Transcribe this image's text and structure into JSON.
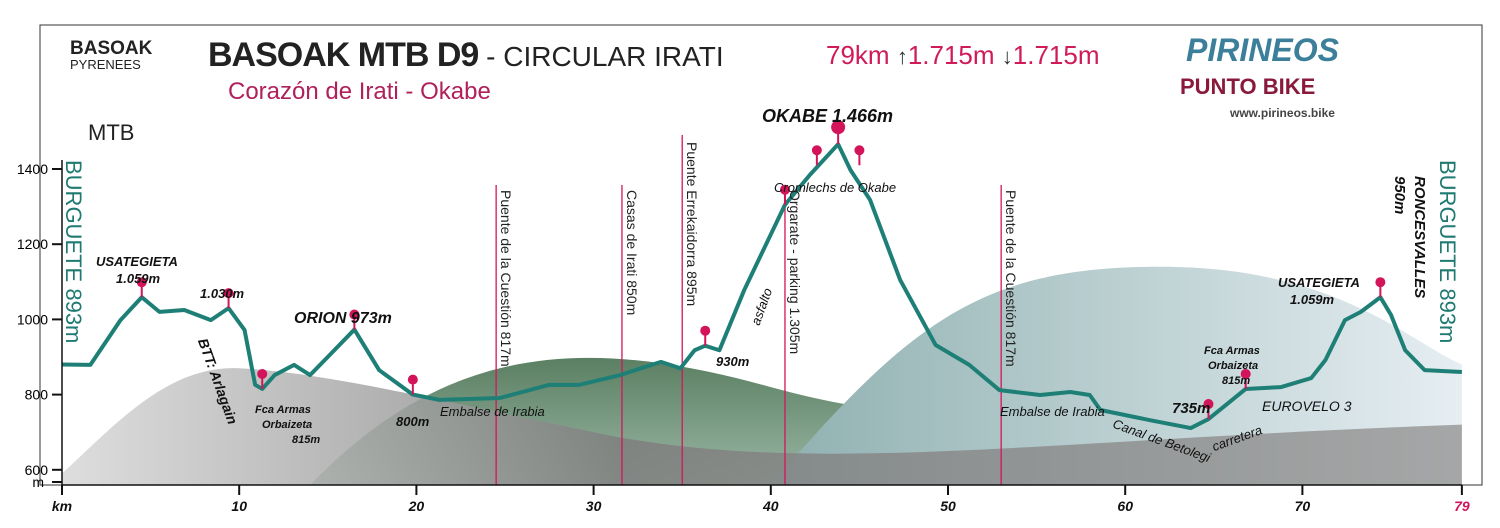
{
  "header": {
    "title": "BASOAK MTB D9",
    "title_sep": " - ",
    "title_rest": "CIRCULAR IRATI",
    "subtitle": "Corazón de Irati - Okabe",
    "distance": "79km",
    "ascent": "1.715m",
    "descent": "1.715m"
  },
  "logo_left": {
    "line1": "BASOAK",
    "line2": "PYRENEES",
    "line3": "MTB"
  },
  "logo_right": {
    "brand": "PIRINEOS",
    "sub": "PUNTO BIKE",
    "url": "www.pirineos.bike"
  },
  "colors": {
    "profile": "#1e7f76",
    "pin": "#d4145a",
    "vline": "#d4145a",
    "hill_green": "#5f8a6e",
    "hill_grey": "#8a8a8a"
  },
  "chart_data": {
    "type": "area",
    "xlabel": "km",
    "ylabel": "m",
    "xlim": [
      0,
      79
    ],
    "ylim": [
      575,
      1500
    ],
    "xticks": [
      0,
      10,
      20,
      30,
      40,
      50,
      60,
      70,
      79
    ],
    "xtick_labels": [
      "km",
      "10",
      "20",
      "30",
      "40",
      "50",
      "60",
      "70",
      "79"
    ],
    "yticks": [
      1400,
      1200,
      1000,
      800,
      600
    ],
    "ytick_labels": [
      "1400",
      "1200",
      "1000",
      "800",
      "600"
    ],
    "grid": false,
    "profile": [
      [
        0,
        880
      ],
      [
        1.6,
        879
      ],
      [
        3.3,
        998
      ],
      [
        4.5,
        1059
      ],
      [
        5.5,
        1020
      ],
      [
        6.9,
        1025
      ],
      [
        8.4,
        998
      ],
      [
        9.4,
        1030
      ],
      [
        10.3,
        972
      ],
      [
        10.9,
        826
      ],
      [
        11.3,
        815
      ],
      [
        12,
        852
      ],
      [
        13.1,
        879
      ],
      [
        14,
        852
      ],
      [
        15.1,
        905
      ],
      [
        16.5,
        973
      ],
      [
        17.9,
        865
      ],
      [
        19.8,
        800
      ],
      [
        21.3,
        786
      ],
      [
        24.7,
        791
      ],
      [
        27.5,
        826
      ],
      [
        29.2,
        826
      ],
      [
        31.5,
        852
      ],
      [
        33.8,
        887
      ],
      [
        34.9,
        870
      ],
      [
        35.7,
        918
      ],
      [
        36.3,
        930
      ],
      [
        37.1,
        918
      ],
      [
        38.5,
        1078
      ],
      [
        40.8,
        1305
      ],
      [
        42.2,
        1384
      ],
      [
        43.8,
        1466
      ],
      [
        44.5,
        1397
      ],
      [
        45.6,
        1318
      ],
      [
        47.3,
        1105
      ],
      [
        49.3,
        932
      ],
      [
        51.2,
        879
      ],
      [
        52.9,
        812
      ],
      [
        55.2,
        799
      ],
      [
        56.9,
        807
      ],
      [
        58,
        799
      ],
      [
        58.6,
        759
      ],
      [
        61.4,
        732
      ],
      [
        63.7,
        711
      ],
      [
        64.7,
        735
      ],
      [
        66.8,
        815
      ],
      [
        68.8,
        820
      ],
      [
        70.5,
        844
      ],
      [
        71.3,
        892
      ],
      [
        72.4,
        998
      ],
      [
        73.3,
        1020
      ],
      [
        74.4,
        1059
      ],
      [
        75,
        1012
      ],
      [
        75.8,
        918
      ],
      [
        76.9,
        865
      ],
      [
        79,
        860
      ]
    ],
    "waypoints": [
      {
        "km": 4.5,
        "m": 1059,
        "label": "USATEGIETA",
        "sub": "1.059m"
      },
      {
        "km": 9.4,
        "m": 1030,
        "label": "1.030m"
      },
      {
        "km": 11.3,
        "m": 815,
        "label": "Fca Armas",
        "sub": "Orbaizeta",
        "sub2": "815m"
      },
      {
        "km": 16.5,
        "m": 973,
        "label": "ORION 973m"
      },
      {
        "km": 19.8,
        "m": 800,
        "label": "800m"
      },
      {
        "km": 36.3,
        "m": 930,
        "label": "930m"
      },
      {
        "km": 40.8,
        "m": 1305,
        "label": ""
      },
      {
        "km": 42.6,
        "m": 1410,
        "label": ""
      },
      {
        "km": 43.8,
        "m": 1466,
        "label": "OKABE 1.466m"
      },
      {
        "km": 45,
        "m": 1410,
        "label": ""
      },
      {
        "km": 64.7,
        "m": 735,
        "label": "735m"
      },
      {
        "km": 66.8,
        "m": 815,
        "label": "Fca Armas",
        "sub": "Orbaizeta",
        "sub2": "815m"
      },
      {
        "km": 74.4,
        "m": 1059,
        "label": "USATEGIETA",
        "sub": "1.059m"
      }
    ],
    "vlines": [
      {
        "km": 24.5,
        "label": "Puente de la Cuestión 817m"
      },
      {
        "km": 31.6,
        "label": "Casas de Irati 850m"
      },
      {
        "km": 35,
        "label": "Puente Errekaidorra 895m"
      },
      {
        "km": 40.8,
        "label": "Orgarate - parking 1.305m"
      },
      {
        "km": 53,
        "label": "Puente de la Cuestión 817m"
      }
    ],
    "annotations": {
      "cromlechs": "Cromlechs de Okabe",
      "btt": "BTT: Arlagain",
      "embalse1": "Embalse de Irabia",
      "embalse2": "Embalse de Irabia",
      "asfalto": "asfalto",
      "canal": "Canal de Betolegi",
      "carretera": "carretera",
      "eurovelo": "EUROVELO 3",
      "start": "BURGUETE 893m",
      "end": "BURGUETE 893m",
      "roncesvalles": "RONCESVALLES",
      "roncesvalles_alt": "950m"
    }
  }
}
